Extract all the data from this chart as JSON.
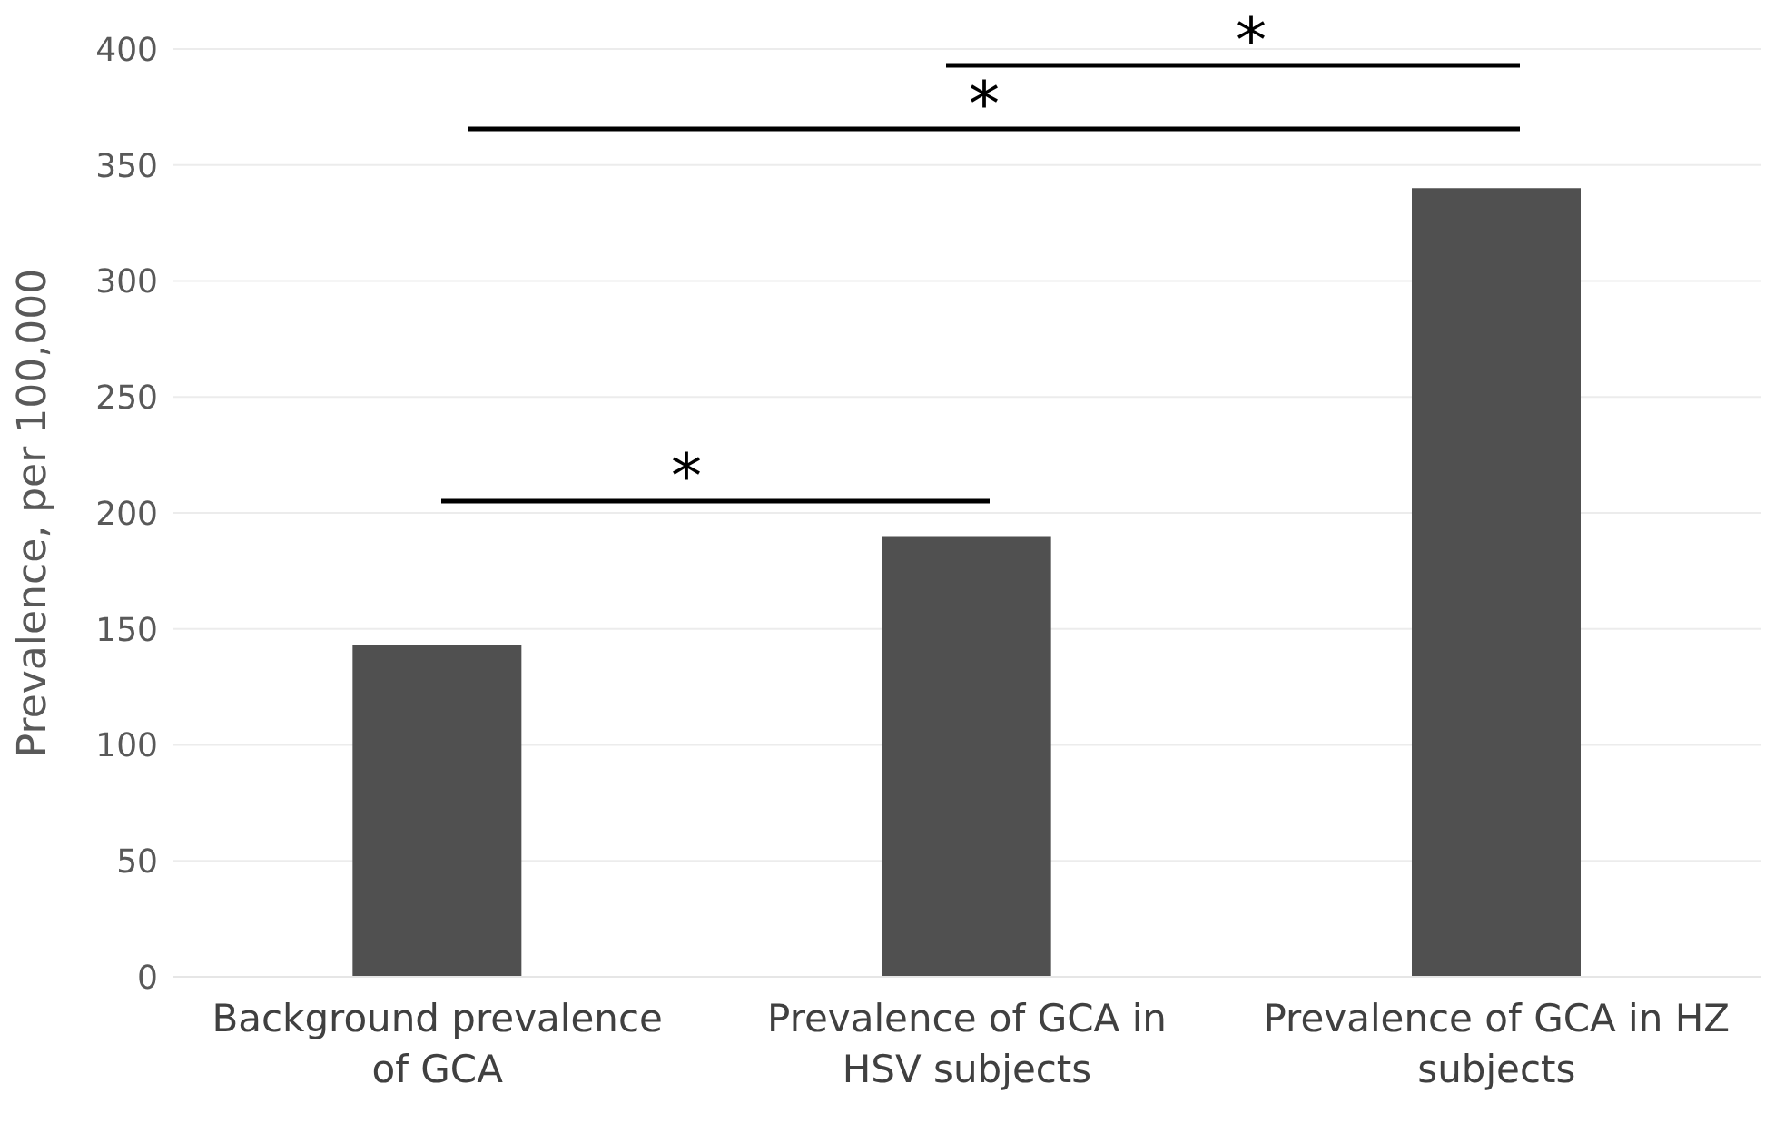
{
  "chart_data": {
    "type": "bar",
    "ylabel": "Prevalence, per 100,000",
    "categories": [
      "Background prevalence of GCA",
      "Prevalence of GCA in HSV subjects",
      "Prevalence of GCA in HZ subjects"
    ],
    "values": [
      143,
      190,
      340
    ],
    "color": "#505050",
    "ylim": [
      0,
      400
    ],
    "yticks": [
      0,
      50,
      100,
      150,
      200,
      250,
      300,
      350,
      400
    ],
    "grid": "y",
    "annotations": [
      "*",
      "*",
      "*"
    ]
  }
}
